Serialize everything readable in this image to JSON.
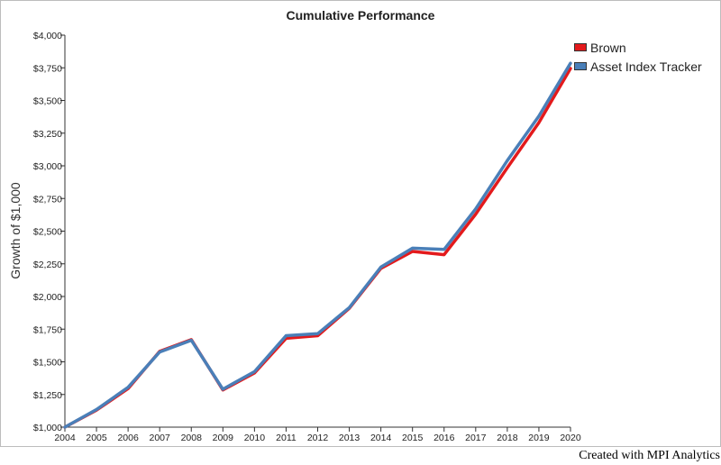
{
  "chart_data": {
    "type": "line",
    "title": "Cumulative Performance",
    "xlabel": "",
    "ylabel": "Growth of $1,000",
    "x": [
      "2004",
      "2005",
      "2006",
      "2007",
      "2008",
      "2009",
      "2010",
      "2011",
      "2012",
      "2013",
      "2014",
      "2015",
      "2016",
      "2017",
      "2018",
      "2019",
      "2020"
    ],
    "ylim": [
      1000,
      4000
    ],
    "yticks": [
      1000,
      1250,
      1500,
      1750,
      2000,
      2250,
      2500,
      2750,
      3000,
      3250,
      3500,
      3750,
      4000
    ],
    "ytick_labels": [
      "$1,000",
      "$1,250",
      "$1,500",
      "$1,750",
      "$2,000",
      "$2,250",
      "$2,500",
      "$2,750",
      "$3,000",
      "$3,250",
      "$3,500",
      "$3,750",
      "$4,000"
    ],
    "grid": false,
    "legend_position": "top-right",
    "series": [
      {
        "name": "Brown",
        "color": "#e31a1c",
        "values": [
          1000,
          1130,
          1295,
          1580,
          1670,
          1285,
          1415,
          1680,
          1700,
          1910,
          2215,
          2345,
          2320,
          2630,
          2985,
          3330,
          3745
        ]
      },
      {
        "name": "Asset Index Tracker",
        "color": "#4a7fb8",
        "values": [
          1000,
          1135,
          1305,
          1575,
          1665,
          1290,
          1425,
          1700,
          1715,
          1915,
          2225,
          2370,
          2360,
          2670,
          3040,
          3380,
          3785
        ]
      }
    ]
  },
  "footer": {
    "credit": "Created with MPI Analytics"
  }
}
